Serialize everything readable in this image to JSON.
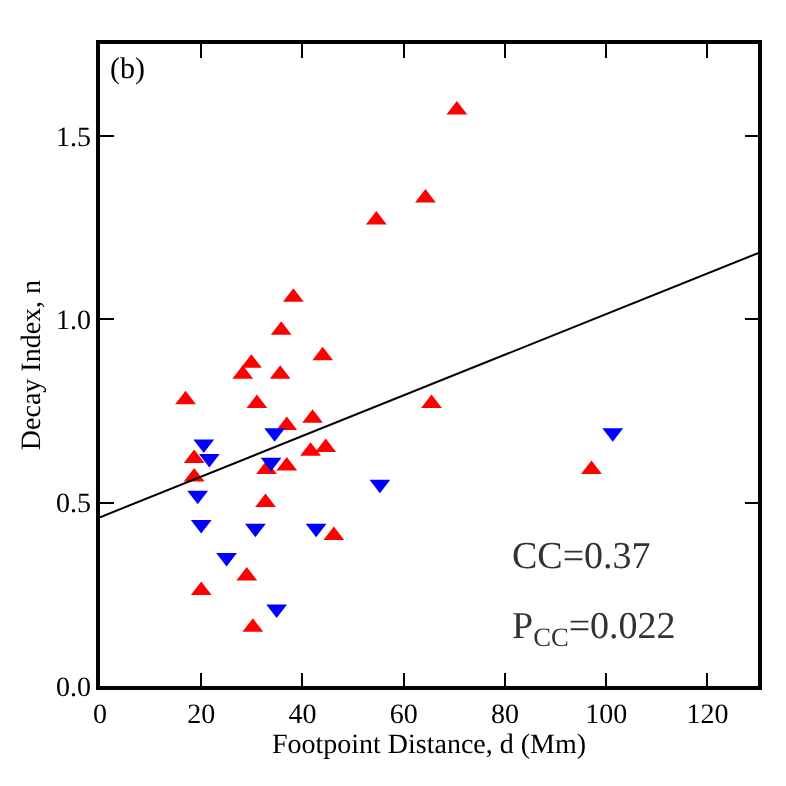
{
  "chart_data": {
    "type": "scatter",
    "title": "(b)",
    "xlabel": "Footpoint Distance, d (Mm)",
    "ylabel": "Decay Index, n",
    "xlim": [
      0,
      130
    ],
    "ylim": [
      0,
      1.75
    ],
    "xticks": [
      0,
      20,
      40,
      60,
      80,
      100,
      120
    ],
    "yticks": [
      {
        "value": 0,
        "label": "0.0"
      },
      {
        "value": 0.5,
        "label": "0.5"
      },
      {
        "value": 1,
        "label": "1.0"
      },
      {
        "value": 1.5,
        "label": "1.5"
      }
    ],
    "series": [
      {
        "color": "#ff0000",
        "marker": "triangle-up",
        "x": [
          16.9,
          18.6,
          18.6,
          20,
          28.2,
          29.9,
          31,
          29,
          30.2,
          32.7,
          32.9,
          35.6,
          35.8,
          36.9,
          36.9,
          38.2,
          41.6,
          42,
          44,
          44.6,
          46.2,
          54.6,
          64.3,
          70.5,
          65.5,
          97.1
        ],
        "values": [
          0.78,
          0.62,
          0.57,
          0.26,
          0.85,
          0.88,
          0.77,
          0.3,
          0.16,
          0.5,
          0.59,
          0.85,
          0.97,
          0.6,
          0.71,
          1.06,
          0.64,
          0.73,
          0.9,
          0.65,
          0.41,
          1.27,
          1.33,
          1.57,
          0.77,
          0.59
        ]
      },
      {
        "color": "#0000ff",
        "marker": "triangle-down",
        "x": [
          20.5,
          21.6,
          19.3,
          20,
          25,
          30.7,
          34.5,
          33.8,
          34.9,
          42.7,
          55.3,
          101.3
        ],
        "values": [
          0.66,
          0.62,
          0.52,
          0.44,
          0.35,
          0.43,
          0.69,
          0.61,
          0.21,
          0.43,
          0.55,
          0.69
        ]
      },
      {
        "type": "line",
        "color": "#000000",
        "marker": "none",
        "x": [
          0,
          130
        ],
        "values": [
          0.46,
          1.18
        ]
      }
    ],
    "annotations": [
      "CC=0.37",
      "P$_{CC}$=0.022"
    ]
  }
}
